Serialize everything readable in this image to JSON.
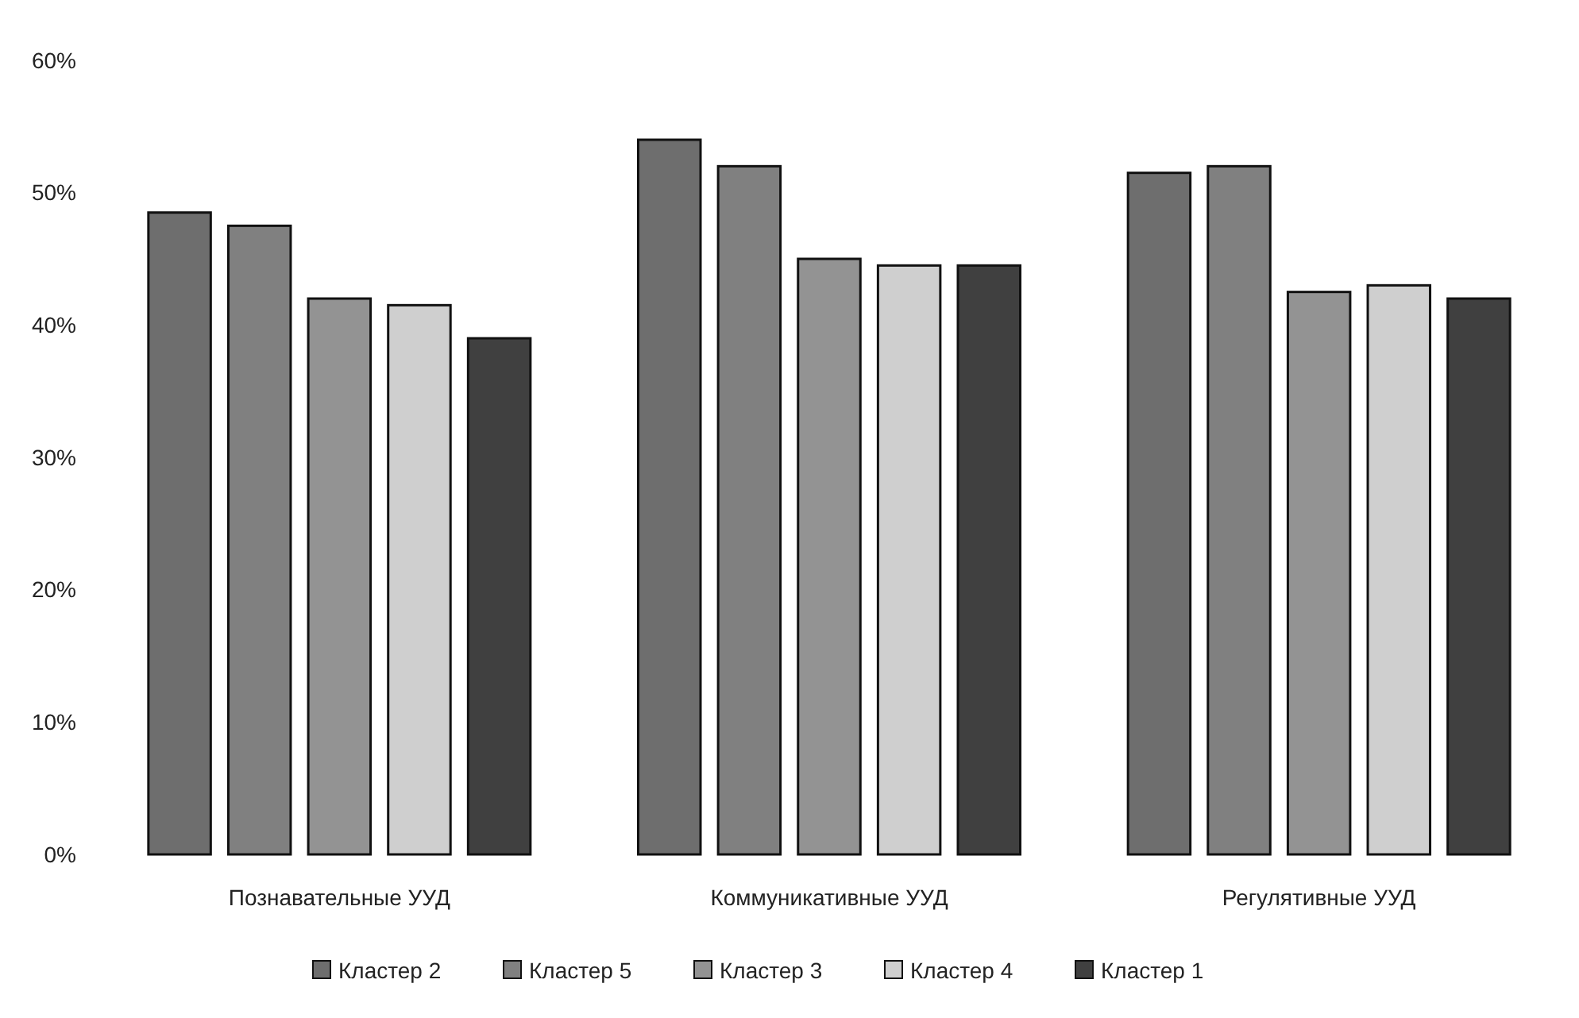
{
  "chart_data": {
    "type": "bar",
    "categories": [
      "Познавательные УУД",
      "Коммуникативные УУД",
      "Регулятивные УУД"
    ],
    "series": [
      {
        "name": "Кластер 2",
        "color": "#6e6e6e",
        "values": [
          48.5,
          54,
          51.5
        ]
      },
      {
        "name": "Кластер 5",
        "color": "#808080",
        "values": [
          47.5,
          52,
          52
        ]
      },
      {
        "name": "Кластер 3",
        "color": "#939393",
        "values": [
          42,
          45,
          42.5
        ]
      },
      {
        "name": "Кластер 4",
        "color": "#cfcfcf",
        "values": [
          41.5,
          44.5,
          43
        ]
      },
      {
        "name": "Кластер 1",
        "color": "#404040",
        "values": [
          39,
          44.5,
          42
        ]
      }
    ],
    "ylim": [
      0,
      60
    ],
    "yticks": [
      {
        "value": 0,
        "label": "0%"
      },
      {
        "value": 10,
        "label": "10%"
      },
      {
        "value": 20,
        "label": "20%"
      },
      {
        "value": 30,
        "label": "30%"
      },
      {
        "value": 40,
        "label": "40%"
      },
      {
        "value": 50,
        "label": "50%"
      },
      {
        "value": 60,
        "label": "60%"
      }
    ],
    "grid": false,
    "legend": "bottom"
  }
}
